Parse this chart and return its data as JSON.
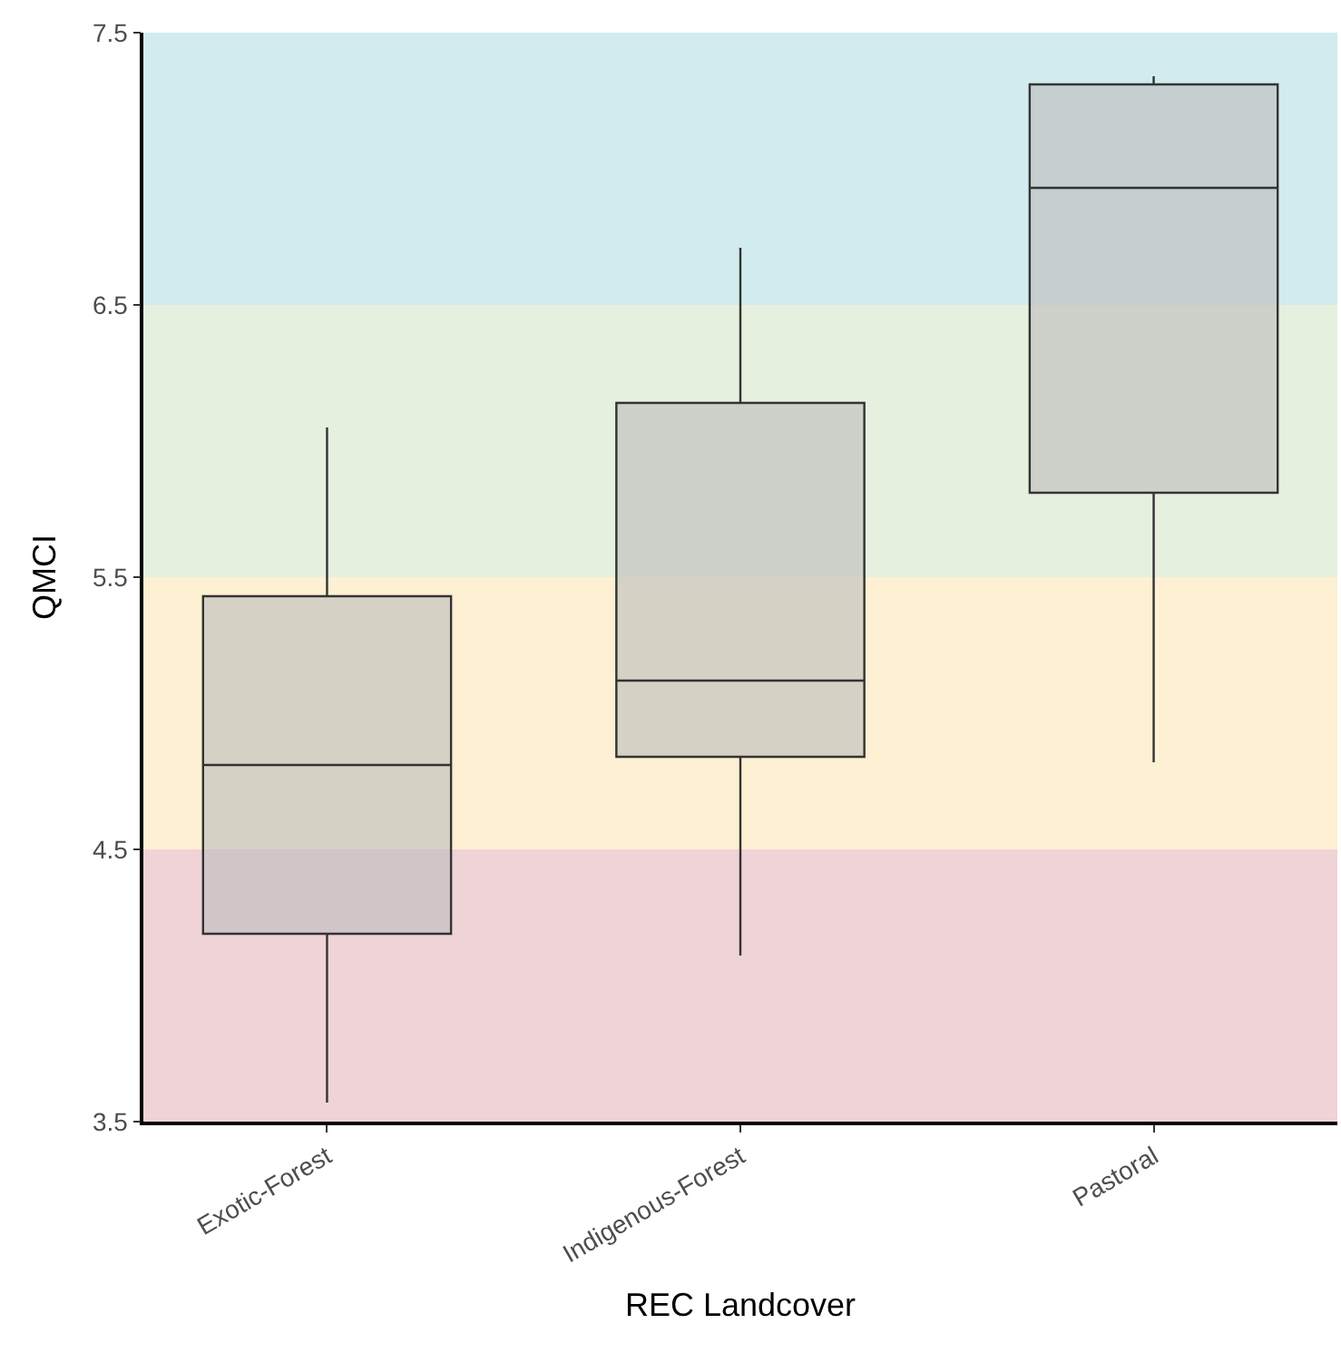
{
  "chart_data": {
    "type": "box",
    "xlabel": "REC Landcover",
    "ylabel": "QMCI",
    "categories": [
      "Exotic-Forest",
      "Indigenous-Forest",
      "Pastoral"
    ],
    "series": [
      {
        "color": "#bdbdbd",
        "boxes": [
          {
            "low": 3.57,
            "q1": 4.19,
            "median": 4.81,
            "q3": 5.43,
            "high": 6.05
          },
          {
            "low": 4.11,
            "q1": 4.84,
            "median": 5.12,
            "q3": 6.14,
            "high": 6.71
          },
          {
            "low": 4.82,
            "q1": 5.81,
            "median": 6.93,
            "q3": 7.31,
            "high": 7.34
          }
        ]
      }
    ],
    "ylim": [
      3.5,
      7.5
    ],
    "yticks": [
      3.5,
      4.5,
      5.5,
      6.5,
      7.5
    ],
    "bands": [
      {
        "axis": "y",
        "from": 3.5,
        "to": 4.5,
        "color": "#f0d3d7"
      },
      {
        "axis": "y",
        "from": 4.5,
        "to": 5.5,
        "color": "#fdf0d3"
      },
      {
        "axis": "y",
        "from": 5.5,
        "to": 6.5,
        "color": "#e6f0de"
      },
      {
        "axis": "y",
        "from": 6.5,
        "to": 7.5,
        "color": "#d2ebee"
      }
    ],
    "grid": false
  }
}
